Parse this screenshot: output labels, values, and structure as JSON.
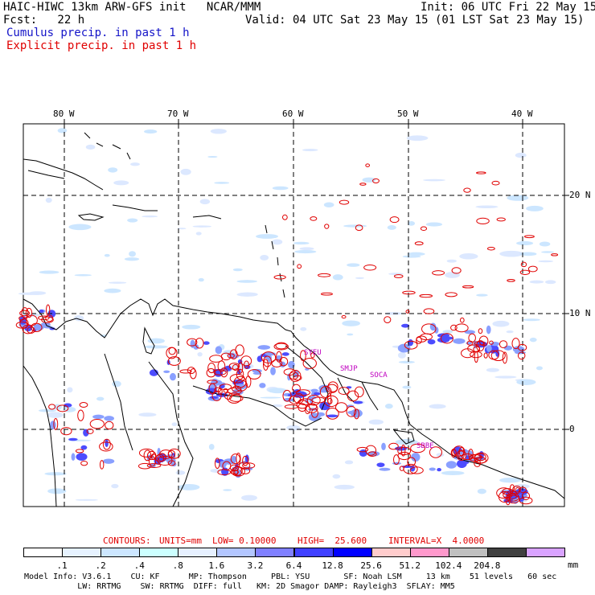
{
  "header": {
    "line1_left": "HAIC-HIWC 13km ARW-GFS init   NCAR/MMM",
    "line1_right": "Init: 06 UTC Fri 22 May 15",
    "line2_left": "Fcst:   22 h",
    "line2_right": "Valid: 04 UTC Sat 23 May 15 (01 LST Sat 23 May 15)",
    "line3": "Cumulus precip. in past 1 h",
    "line4": "Explicit precip. in past 1 h"
  },
  "map": {
    "lon_labels": [
      "80 W",
      "70 W",
      "60 W",
      "50 W",
      "40 W"
    ],
    "lat_labels": [
      "20 N",
      "10 N",
      "0"
    ],
    "stations": [
      "SYEU",
      "SMJP",
      "SOCA",
      "SBBE"
    ],
    "colors": {
      "cumulus": "#4c4cff",
      "explicit": "#e00000",
      "coast": "#000000",
      "station": "#c000c0"
    }
  },
  "contours": {
    "title": "CONTOURS:",
    "units": "UNITS=mm",
    "low": "LOW= 0.10000",
    "high": "HIGH=  25.600",
    "interval": "INTERVAL=X  4.0000"
  },
  "legend": {
    "labels": [
      ".1",
      ".2",
      ".4",
      ".8",
      "1.6",
      "3.2",
      "6.4",
      "12.8",
      "25.6",
      "51.2",
      "102.4",
      "204.8"
    ],
    "unit": "mm",
    "colors": [
      "#ffffff",
      "#e6f2ff",
      "#cce6ff",
      "#ccffff",
      "#e6f0ff",
      "#b3c6ff",
      "#8080ff",
      "#4040ff",
      "#0000ff",
      "#ffcccc",
      "#ff99cc",
      "#c0c0c0",
      "#404040",
      "#d9a3ff"
    ]
  },
  "footer": {
    "line1": "Model Info: V3.6.1    CU: KF      MP: Thompson     PBL: YSU       SF: Noah LSM     13 km    51 levels   60 sec",
    "line2": "           LW: RRTMG    SW: RRTMG  DIFF: full   KM: 2D Smagor DAMP: Rayleigh3  SFLAY: MM5"
  }
}
